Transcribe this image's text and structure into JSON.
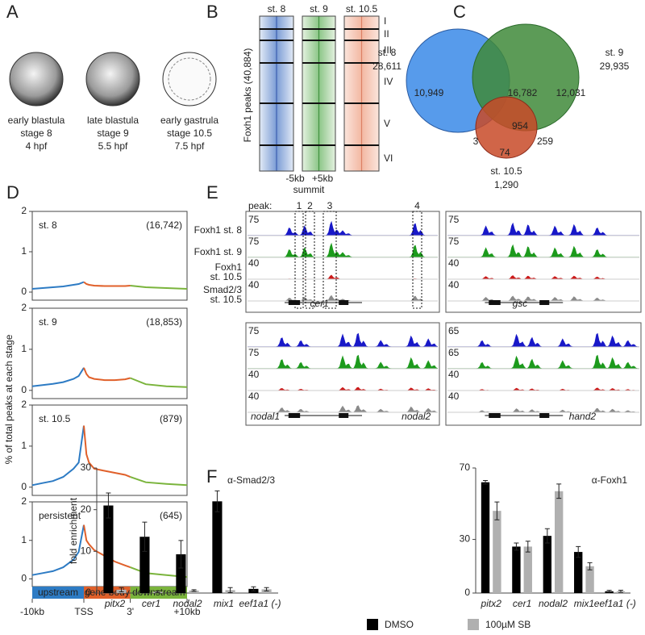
{
  "panels": {
    "letters": [
      "A",
      "B",
      "C",
      "D",
      "E",
      "F"
    ],
    "A": {
      "embryos": [
        {
          "name": "early blastula",
          "stage": "stage 8",
          "time": "4 hpf"
        },
        {
          "name": "late blastula",
          "stage": "stage 9",
          "time": "5.5 hpf"
        },
        {
          "name": "early gastrula",
          "stage": "stage 10.5",
          "time": "7.5 hpf"
        }
      ]
    },
    "B": {
      "y_label": "Foxh1 peaks (40,884)",
      "columns": [
        "st. 8",
        "st. 9",
        "st. 10.5"
      ],
      "clusters": [
        "I",
        "II",
        "III",
        "IV",
        "V",
        "VI"
      ],
      "x_left": "-5kb",
      "x_right": "+5kb",
      "x_center": "summit"
    },
    "C": {
      "sets": [
        {
          "name": "st. 8",
          "total": "28,611"
        },
        {
          "name": "st. 9",
          "total": "29,935"
        },
        {
          "name": "st. 10.5",
          "total": "1,290"
        }
      ],
      "regions": [
        "10,949",
        "16,782",
        "12,031",
        "954",
        "3",
        "259",
        "74"
      ]
    },
    "D": {
      "y_label": "% of total peaks at each stage"
    },
    "E": {
      "peak_label": "peak:",
      "peaks": [
        "1",
        "2",
        "3",
        "4"
      ],
      "tracks": [
        [
          "Foxh1 st. 8"
        ],
        [
          "Foxh1 st. 9"
        ],
        [
          "Foxh1",
          "st. 10.5"
        ],
        [
          "Smad2/3",
          "st. 10.5"
        ]
      ],
      "loci": [
        {
          "genes": [
            "cer1"
          ],
          "scales": [
            75,
            75,
            40,
            40
          ]
        },
        {
          "genes": [
            "gsc"
          ],
          "scales": [
            75,
            75,
            40,
            40
          ]
        },
        {
          "genes": [
            "nodal1",
            "nodal2"
          ],
          "scales": [
            75,
            75,
            40,
            40
          ]
        },
        {
          "genes": [
            "hand2"
          ],
          "scales": [
            65,
            65,
            40,
            40
          ]
        }
      ]
    },
    "F": {
      "y_label": "fold enrichment"
    }
  },
  "chart_data": [
    {
      "type": "line",
      "title": "st. 8",
      "annotation": "(16,742)",
      "title_color": "#2b3fc0",
      "x": [
        0,
        2,
        4,
        6,
        8,
        9,
        10,
        10.5,
        11,
        12,
        14,
        16,
        18,
        19,
        22,
        26,
        30
      ],
      "xlim": [
        0,
        30
      ],
      "ylim": [
        -0.2,
        2
      ],
      "yticks": [
        0,
        1,
        2
      ],
      "series": [
        {
          "color": "#2d7bc4",
          "values": [
            0.08,
            0.1,
            0.12,
            0.14,
            0.18,
            0.2,
            0.25,
            null,
            null,
            null,
            null,
            null,
            null,
            null,
            null,
            null,
            null
          ]
        },
        {
          "color": "#e0602a",
          "values": [
            null,
            null,
            null,
            null,
            null,
            null,
            0.25,
            0.2,
            0.18,
            0.16,
            0.15,
            0.15,
            0.15,
            0.16,
            null,
            null,
            null
          ]
        },
        {
          "color": "#7ab43c",
          "values": [
            null,
            null,
            null,
            null,
            null,
            null,
            null,
            null,
            null,
            null,
            null,
            null,
            null,
            0.16,
            0.12,
            0.1,
            0.08
          ]
        }
      ]
    },
    {
      "type": "line",
      "title": "st. 9",
      "annotation": "(18,853)",
      "title_color": "#2f7d2f",
      "x": [
        0,
        2,
        4,
        6,
        8,
        9,
        10,
        10.5,
        11,
        12,
        14,
        16,
        18,
        19,
        22,
        26,
        30
      ],
      "xlim": [
        0,
        30
      ],
      "ylim": [
        -0.2,
        2
      ],
      "yticks": [
        0,
        1,
        2
      ],
      "series": [
        {
          "color": "#2d7bc4",
          "values": [
            0.1,
            0.13,
            0.16,
            0.2,
            0.28,
            0.35,
            0.55,
            null,
            null,
            null,
            null,
            null,
            null,
            null,
            null,
            null,
            null
          ]
        },
        {
          "color": "#e0602a",
          "values": [
            null,
            null,
            null,
            null,
            null,
            null,
            0.55,
            0.4,
            0.32,
            0.28,
            0.25,
            0.25,
            0.27,
            0.3,
            null,
            null,
            null
          ]
        },
        {
          "color": "#7ab43c",
          "values": [
            null,
            null,
            null,
            null,
            null,
            null,
            null,
            null,
            null,
            null,
            null,
            null,
            null,
            0.3,
            0.15,
            0.1,
            0.08
          ]
        }
      ]
    },
    {
      "type": "line",
      "title": "st. 10.5",
      "annotation": "(879)",
      "title_color": "#a8262a",
      "x": [
        0,
        2,
        4,
        6,
        8,
        9,
        10,
        10.5,
        11,
        12,
        14,
        16,
        18,
        19,
        22,
        26,
        30
      ],
      "xlim": [
        0,
        30
      ],
      "ylim": [
        -0.2,
        2
      ],
      "yticks": [
        0,
        1,
        2
      ],
      "series": [
        {
          "color": "#2d7bc4",
          "values": [
            0.05,
            0.1,
            0.15,
            0.25,
            0.45,
            0.6,
            1.5,
            null,
            null,
            null,
            null,
            null,
            null,
            null,
            null,
            null,
            null
          ]
        },
        {
          "color": "#e0602a",
          "values": [
            null,
            null,
            null,
            null,
            null,
            null,
            1.5,
            0.8,
            0.6,
            0.45,
            0.4,
            0.35,
            0.3,
            0.25,
            null,
            null,
            null
          ]
        },
        {
          "color": "#7ab43c",
          "values": [
            null,
            null,
            null,
            null,
            null,
            null,
            null,
            null,
            null,
            null,
            null,
            null,
            null,
            0.25,
            0.12,
            0.08,
            0.05
          ]
        }
      ]
    },
    {
      "type": "line",
      "title": "persistent",
      "annotation": "(645)",
      "title_color": "#222222",
      "x": [
        0,
        2,
        4,
        6,
        8,
        9,
        10,
        10.5,
        11,
        12,
        14,
        16,
        18,
        19,
        22,
        26,
        30
      ],
      "xlim": [
        0,
        30
      ],
      "xticks": [
        {
          "value": 0,
          "label": "-10kb"
        },
        {
          "value": 10,
          "label": "TSS"
        },
        {
          "value": 19,
          "label": "3'"
        },
        {
          "value": 30,
          "label": "+10kb"
        }
      ],
      "ylim": [
        -0.2,
        2
      ],
      "yticks": [
        0,
        1,
        2
      ],
      "series": [
        {
          "name": "upstream",
          "color": "#2d7bc4",
          "values": [
            0.1,
            0.15,
            0.2,
            0.3,
            0.5,
            0.7,
            1.4,
            null,
            null,
            null,
            null,
            null,
            null,
            null,
            null,
            null,
            null
          ]
        },
        {
          "name": "gene body",
          "color": "#e0602a",
          "values": [
            null,
            null,
            null,
            null,
            null,
            null,
            1.4,
            1.0,
            0.9,
            0.75,
            0.6,
            0.45,
            0.35,
            0.3,
            null,
            null,
            null
          ]
        },
        {
          "name": "downstream",
          "color": "#7ab43c",
          "values": [
            null,
            null,
            null,
            null,
            null,
            null,
            null,
            null,
            null,
            null,
            null,
            null,
            null,
            0.3,
            0.15,
            0.1,
            0.05
          ]
        }
      ]
    },
    {
      "type": "bar",
      "title": "α-Smad2/3",
      "categories": [
        "pitx2",
        "cer1",
        "nodal2",
        "mix1",
        "eef1a1 (-)"
      ],
      "ylim": [
        0,
        30
      ],
      "yticks": [
        0,
        10,
        20,
        30
      ],
      "series": [
        {
          "name": "DMSO",
          "color": "#000000",
          "values": [
            21,
            13.5,
            9.3,
            22,
            1
          ],
          "errors": [
            3,
            3.5,
            3.3,
            2.5,
            0.5
          ]
        },
        {
          "name": "100µM SB",
          "color": "#b0b0b0",
          "values": [
            0.8,
            0.3,
            0.6,
            0.7,
            0.9
          ],
          "errors": [
            0.5,
            0.2,
            0.2,
            0.6,
            0.4
          ]
        }
      ]
    },
    {
      "type": "bar",
      "title": "α-Foxh1",
      "categories": [
        "pitx2",
        "cer1",
        "nodal2",
        "mix1",
        "eef1a1 (-)"
      ],
      "ylim": [
        0,
        70
      ],
      "yticks": [
        0,
        30,
        70
      ],
      "series": [
        {
          "color": "#000000",
          "values": [
            62,
            26,
            32,
            23,
            1
          ],
          "errors": [
            1,
            2,
            4,
            3,
            0.5
          ]
        },
        {
          "color": "#b0b0b0",
          "values": [
            46,
            26,
            57,
            15,
            1
          ],
          "errors": [
            5,
            3,
            4,
            2,
            0.6
          ]
        }
      ]
    }
  ]
}
